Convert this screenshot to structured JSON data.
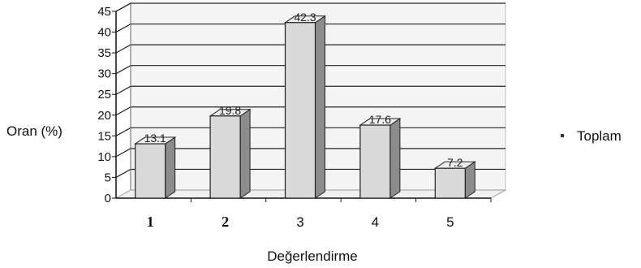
{
  "chart_data": {
    "type": "bar",
    "title": "",
    "xlabel": "Değerlendirme",
    "ylabel": "Oran (%)",
    "categories": [
      "1",
      "2",
      "3",
      "4",
      "5"
    ],
    "series": [
      {
        "name": "Toplam",
        "values": [
          13.1,
          19.8,
          42.3,
          17.6,
          7.2
        ]
      }
    ],
    "data_labels": [
      "13.1",
      "19.8",
      "42.3",
      "17.6",
      "7.2"
    ],
    "y_ticks": [
      "0",
      "5",
      "10",
      "15",
      "20",
      "25",
      "30",
      "35",
      "40",
      "45"
    ],
    "ylim": [
      0,
      45
    ],
    "grid": true,
    "legend": "right",
    "three_d": true,
    "colors": {
      "bar_front": "#d9d9d9",
      "bar_side": "#8c8c8c",
      "bar_top": "#efefef",
      "grid": "#222222",
      "wall": "#f4f4f4"
    }
  }
}
